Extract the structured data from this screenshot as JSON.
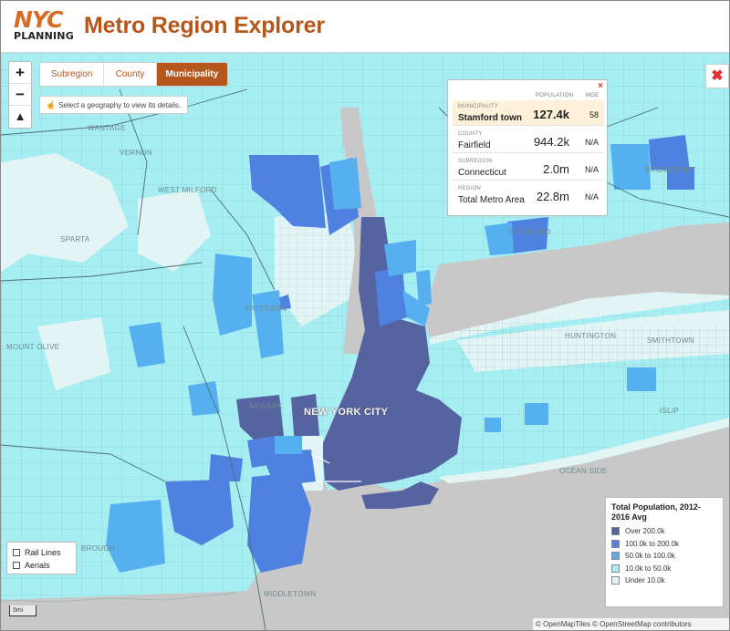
{
  "header": {
    "logo_top": "NYC",
    "logo_bottom": "PLANNING",
    "title": "Metro Region Explorer"
  },
  "colors": {
    "accent": "#b5561c",
    "water": "#c8c8c8",
    "class_over_200k": "#5563a0",
    "class_100k_200k": "#4e81e0",
    "class_50k_100k": "#56b0f0",
    "class_10k_50k": "#a6eef2",
    "class_under_10k": "#e2f4f4"
  },
  "controls": {
    "zoom_in": "+",
    "zoom_out": "−",
    "reset_north": "▲",
    "close": "✖"
  },
  "tabs": [
    {
      "label": "Subregion",
      "active": false
    },
    {
      "label": "County",
      "active": false
    },
    {
      "label": "Municipality",
      "active": true
    }
  ],
  "hint": {
    "icon": "hand-pointer-icon",
    "text": "Select a geography to view its details."
  },
  "info_panel": {
    "close": "×",
    "col_population": "POPULATION",
    "col_moe": "MOE",
    "rows": [
      {
        "caption": "MUNICIPALITY",
        "name": "Stamford town",
        "value": "127.4k",
        "moe": "58",
        "highlight": true
      },
      {
        "caption": "COUNTY",
        "name": "Fairfield",
        "value": "944.2k",
        "moe": "N/A",
        "highlight": false
      },
      {
        "caption": "SUBREGION",
        "name": "Connecticut",
        "value": "2.0m",
        "moe": "N/A",
        "highlight": false
      },
      {
        "caption": "REGION",
        "name": "Total Metro Area",
        "value": "22.8m",
        "moe": "N/A",
        "highlight": false
      }
    ]
  },
  "legend": {
    "title": "Total Population, 2012-2016 Avg",
    "items": [
      {
        "label": "Over 200.0k",
        "color": "#5563a0"
      },
      {
        "label": "100.0k to 200.0k",
        "color": "#4e81e0"
      },
      {
        "label": "50.0k to 100.0k",
        "color": "#56b0f0"
      },
      {
        "label": "10.0k to 50.0k",
        "color": "#a6eef2"
      },
      {
        "label": "Under 10.0k",
        "color": "#e2f4f4"
      }
    ]
  },
  "layers": [
    {
      "label": "Rail Lines",
      "checked": false
    },
    {
      "label": "Aerials",
      "checked": false
    }
  ],
  "scale_label": "5mi",
  "attribution": "© OpenMapTiles © OpenStreetMap contributors",
  "place_labels": {
    "wantage": "WANTAGE",
    "vernon": "VERNON",
    "west_milford": "WEST MILFORD",
    "sparta": "SPARTA",
    "paterson": "PATERSON",
    "mount_olive": "MOUNT OLIVE",
    "newark": "NEWARK",
    "new_york_city": "NEW YORK CITY",
    "stamford": "STAMFORD",
    "bridgeport": "BRIDGEPORT",
    "huntington": "HUNTINGTON",
    "smithtown": "SMITHTOWN",
    "islip": "ISLIP",
    "oceanside": "OCEAN SIDE",
    "brough": "BROUGH",
    "middletown": "MIDDLETOWN"
  }
}
